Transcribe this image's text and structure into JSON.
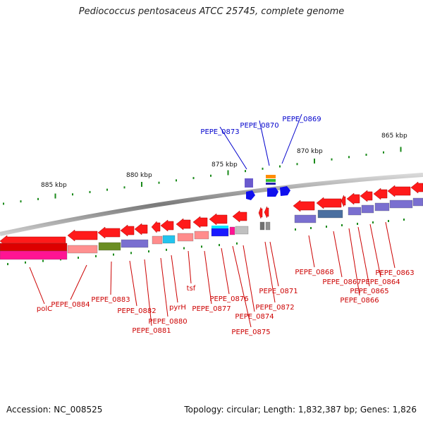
{
  "title": "Pediococcus pentosaceus ATCC 25745, complete genome",
  "accession": "Accession: NC_008525",
  "topology": "Topology: circular; Length: 1,832,387 bp; Genes: 1,826",
  "colors": {
    "gene_red": "#ff1a1a",
    "label_red": "#cc0000",
    "label_blue": "#0000cc",
    "tick_green": "#1a8a1a",
    "backbone": "#8a8a8a"
  },
  "scale_labels": [
    "885 kbp",
    "880 kbp",
    "875 kbp",
    "870 kbp",
    "865 kbp"
  ],
  "gene_labels": [
    {
      "text": "polC",
      "color": "red"
    },
    {
      "text": "PEPE_0884",
      "color": "red"
    },
    {
      "text": "PEPE_0883",
      "color": "red"
    },
    {
      "text": "PEPE_0882",
      "color": "red"
    },
    {
      "text": "PEPE_0881",
      "color": "red"
    },
    {
      "text": "PEPE_0880",
      "color": "red"
    },
    {
      "text": "pyrH",
      "color": "red"
    },
    {
      "text": "tsf",
      "color": "red"
    },
    {
      "text": "PEPE_0877",
      "color": "red"
    },
    {
      "text": "PEPE_0876",
      "color": "red"
    },
    {
      "text": "PEPE_0875",
      "color": "red"
    },
    {
      "text": "PEPE_0874",
      "color": "red"
    },
    {
      "text": "PEPE_0872",
      "color": "red"
    },
    {
      "text": "PEPE_0871",
      "color": "red"
    },
    {
      "text": "PEPE_0868",
      "color": "red"
    },
    {
      "text": "PEPE_0867",
      "color": "red"
    },
    {
      "text": "PEPE_0866",
      "color": "red"
    },
    {
      "text": "PEPE_0865",
      "color": "red"
    },
    {
      "text": "PEPE_0864",
      "color": "red"
    },
    {
      "text": "PEPE_0863",
      "color": "red"
    },
    {
      "text": "PEPE_0873",
      "color": "blue"
    },
    {
      "text": "PEPE_0870",
      "color": "blue"
    },
    {
      "text": "PEPE_0869",
      "color": "blue"
    }
  ]
}
